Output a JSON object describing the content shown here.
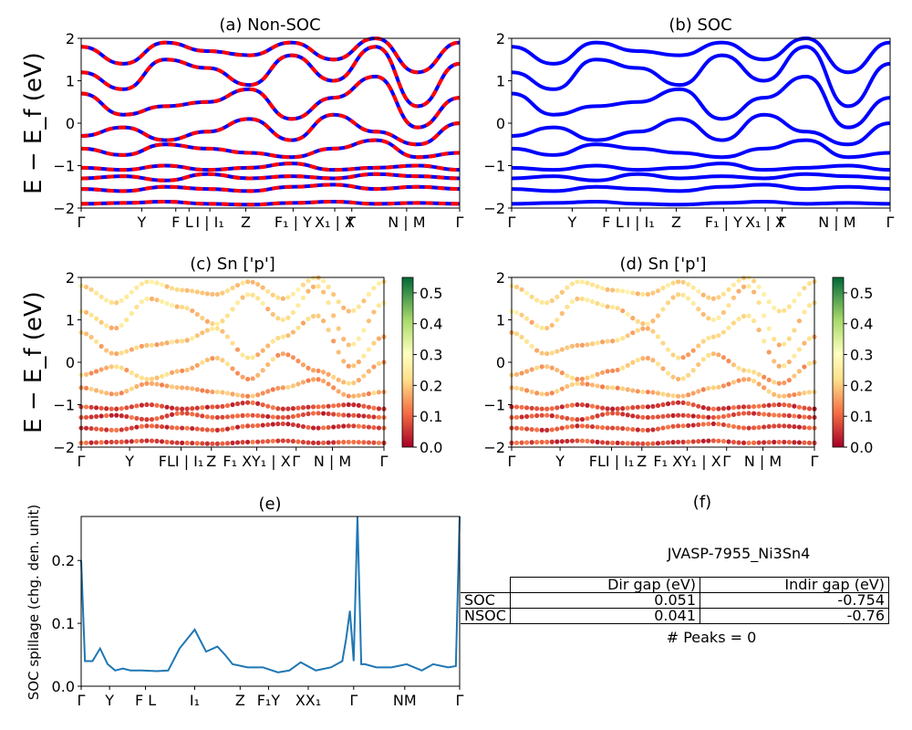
{
  "ylabel_energy": "E − E_f (eV)",
  "colors": {
    "nonsoc_line": "#0000ff",
    "nonsoc_dash": "#ff0000",
    "soc_line": "#0000ff",
    "spillage": "#1f77b4"
  },
  "kpath_labels_bands": [
    "Γ",
    "Y",
    "F",
    "L",
    "I | I₁",
    "Z",
    "F₁ | Y",
    "X₁ | X",
    "Γ",
    "N | M",
    "Γ"
  ],
  "kpath_labels_proj": [
    "Γ",
    "Y",
    "FLI | I₁",
    "Z",
    "F₁ XY₁ | X",
    "Γ",
    "N | M",
    "Γ"
  ],
  "kpath_labels_spill": [
    "Γ",
    "Y",
    "F L",
    "I₁",
    "Z",
    "F₁Y",
    "XX₁",
    "Γ",
    "NM",
    "Γ"
  ],
  "panel_a": {
    "title": "(a) Non-SOC"
  },
  "panel_b": {
    "title": "(b) SOC"
  },
  "panel_c": {
    "title": "(c)  Sn ['p']",
    "colorbar_ticks": [
      "0.0",
      "0.1",
      "0.2",
      "0.3",
      "0.4",
      "0.5"
    ]
  },
  "panel_d": {
    "title": "(d) Sn ['p']",
    "colorbar_ticks": [
      "0.0",
      "0.1",
      "0.2",
      "0.3",
      "0.4",
      "0.5"
    ]
  },
  "panel_e": {
    "title": "(e)",
    "ylabel": "SOC spillage (chg. den. unit)"
  },
  "panel_f": {
    "title": "(f)",
    "material": "JVASP-7955_Ni3Sn4",
    "table": {
      "headers": [
        "Dir gap (eV)",
        "Indir gap (eV)"
      ],
      "rows": [
        {
          "label": "SOC",
          "dir": "0.051",
          "indir": "-0.754"
        },
        {
          "label": "NSOC",
          "dir": "0.041",
          "indir": "-0.76"
        }
      ]
    },
    "peaks": "# Peaks = 0"
  },
  "chart_data": [
    {
      "type": "line",
      "title": "(a) Non-SOC",
      "ylabel": "E − E_f (eV)",
      "ylim": [
        -2,
        2
      ],
      "yticks": [
        -2,
        -1,
        0,
        1,
        2
      ],
      "xticks": [
        "Γ",
        "Y",
        "F",
        "L",
        "I | I₁",
        "Z",
        "F₁ | Y",
        "X₁ | X",
        "Γ",
        "N | M",
        "Γ"
      ],
      "series": [
        {
          "values": [
            -1.9,
            -1.88,
            -1.85,
            -1.9,
            -1.92,
            -1.88,
            -1.85,
            -1.9,
            -1.88,
            -1.9
          ]
        },
        {
          "values": [
            -1.55,
            -1.6,
            -1.5,
            -1.55,
            -1.6,
            -1.5,
            -1.45,
            -1.55,
            -1.5,
            -1.55
          ]
        },
        {
          "values": [
            -1.3,
            -1.25,
            -1.35,
            -1.2,
            -1.3,
            -1.25,
            -1.3,
            -1.2,
            -1.25,
            -1.3
          ]
        },
        {
          "values": [
            -1.05,
            -1.1,
            -1.0,
            -1.1,
            -1.05,
            -0.95,
            -1.1,
            -1.05,
            -1.0,
            -1.1
          ]
        },
        {
          "values": [
            -0.6,
            -0.75,
            -0.5,
            -0.6,
            -0.7,
            -0.8,
            -0.6,
            -0.4,
            -0.8,
            -0.7
          ]
        },
        {
          "values": [
            -0.3,
            -0.1,
            -0.4,
            -0.2,
            0.1,
            -0.4,
            0.2,
            -0.2,
            -0.5,
            0.0
          ]
        },
        {
          "values": [
            0.7,
            0.2,
            0.4,
            0.5,
            0.8,
            0.1,
            0.6,
            1.1,
            -0.1,
            0.6
          ]
        },
        {
          "values": [
            1.2,
            0.8,
            1.5,
            1.3,
            0.9,
            1.6,
            1.0,
            1.8,
            0.4,
            1.4
          ]
        },
        {
          "values": [
            1.8,
            1.4,
            1.9,
            1.7,
            1.6,
            1.9,
            1.5,
            2.0,
            1.2,
            1.9
          ]
        }
      ]
    },
    {
      "type": "line",
      "title": "(b) SOC",
      "ylim": [
        -2,
        2
      ],
      "yticks": [
        -2,
        -1,
        0,
        1,
        2
      ],
      "xticks": [
        "Γ",
        "Y",
        "F",
        "L",
        "I | I₁",
        "Z",
        "F₁ | Y",
        "X₁ | X",
        "Γ",
        "N | M",
        "Γ"
      ],
      "series": [
        {
          "values": [
            -1.9,
            -1.88,
            -1.85,
            -1.9,
            -1.92,
            -1.88,
            -1.85,
            -1.9,
            -1.88,
            -1.9
          ]
        },
        {
          "values": [
            -1.55,
            -1.6,
            -1.5,
            -1.55,
            -1.6,
            -1.5,
            -1.45,
            -1.55,
            -1.5,
            -1.55
          ]
        },
        {
          "values": [
            -1.3,
            -1.25,
            -1.35,
            -1.2,
            -1.3,
            -1.25,
            -1.3,
            -1.2,
            -1.25,
            -1.3
          ]
        },
        {
          "values": [
            -1.05,
            -1.1,
            -1.0,
            -1.1,
            -1.05,
            -0.95,
            -1.1,
            -1.05,
            -1.0,
            -1.1
          ]
        },
        {
          "values": [
            -0.6,
            -0.75,
            -0.5,
            -0.6,
            -0.7,
            -0.8,
            -0.6,
            -0.4,
            -0.8,
            -0.7
          ]
        },
        {
          "values": [
            -0.3,
            -0.1,
            -0.4,
            -0.2,
            0.1,
            -0.4,
            0.2,
            -0.2,
            -0.5,
            0.0
          ]
        },
        {
          "values": [
            0.7,
            0.2,
            0.4,
            0.5,
            0.8,
            0.1,
            0.6,
            1.1,
            -0.1,
            0.6
          ]
        },
        {
          "values": [
            1.2,
            0.8,
            1.5,
            1.3,
            0.9,
            1.6,
            1.0,
            1.8,
            0.4,
            1.4
          ]
        },
        {
          "values": [
            1.8,
            1.4,
            1.9,
            1.7,
            1.6,
            1.9,
            1.5,
            2.0,
            1.2,
            1.9
          ]
        }
      ]
    },
    {
      "type": "scatter",
      "title": "(c)  Sn ['p']",
      "ylim": [
        -2,
        2
      ],
      "colorbar_range": [
        0,
        0.55
      ],
      "xticks": [
        "Γ",
        "Y",
        "FLI | I₁",
        "Z",
        "F₁ XY₁ | X",
        "Γ",
        "N | M",
        "Γ"
      ]
    },
    {
      "type": "scatter",
      "title": "(d) Sn ['p']",
      "ylim": [
        -2,
        2
      ],
      "colorbar_range": [
        0,
        0.55
      ],
      "xticks": [
        "Γ",
        "Y",
        "FLI | I₁",
        "Z",
        "F₁ XY₁ | X",
        "Γ",
        "N | M",
        "Γ"
      ]
    },
    {
      "type": "line",
      "title": "(e)",
      "ylabel": "SOC spillage (chg. den. unit)",
      "ylim": [
        0,
        0.27
      ],
      "yticks": [
        0.0,
        0.1,
        0.2
      ],
      "xticks": [
        "Γ",
        "Y",
        "F L",
        "I₁",
        "Z",
        "F₁Y",
        "XX₁",
        "Γ",
        "NM",
        "Γ"
      ],
      "x": [
        0,
        0.01,
        0.03,
        0.05,
        0.07,
        0.09,
        0.11,
        0.13,
        0.16,
        0.2,
        0.23,
        0.26,
        0.3,
        0.33,
        0.36,
        0.38,
        0.4,
        0.44,
        0.48,
        0.52,
        0.55,
        0.58,
        0.62,
        0.66,
        0.69,
        0.7,
        0.71,
        0.72,
        0.73,
        0.74,
        0.75,
        0.78,
        0.82,
        0.86,
        0.9,
        0.93,
        0.97,
        0.99,
        1.0
      ],
      "values": [
        0.2,
        0.04,
        0.04,
        0.06,
        0.035,
        0.025,
        0.028,
        0.025,
        0.025,
        0.024,
        0.025,
        0.06,
        0.09,
        0.055,
        0.063,
        0.05,
        0.035,
        0.03,
        0.03,
        0.022,
        0.025,
        0.038,
        0.025,
        0.03,
        0.04,
        0.075,
        0.12,
        0.04,
        0.27,
        0.035,
        0.035,
        0.03,
        0.03,
        0.035,
        0.025,
        0.035,
        0.03,
        0.032,
        0.27
      ]
    }
  ]
}
